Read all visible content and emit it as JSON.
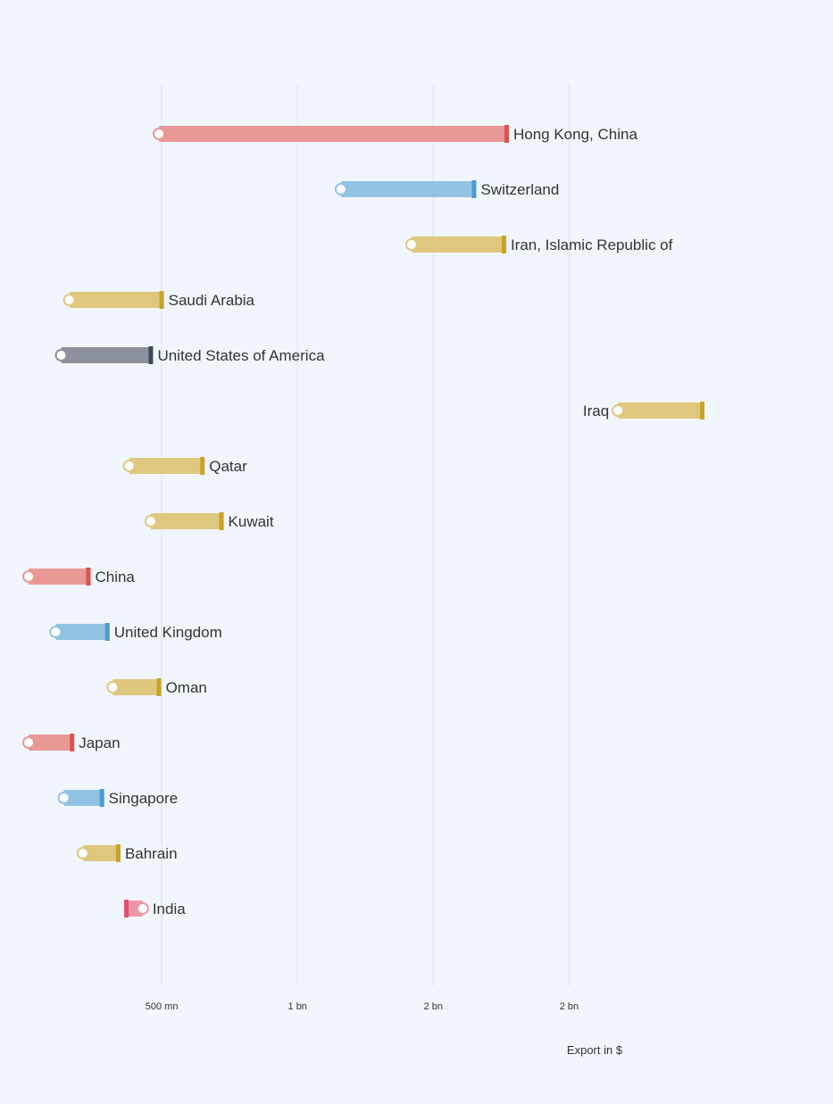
{
  "chart_data": {
    "type": "dumbbell",
    "title": "",
    "xlabel": "Export in $",
    "ylabel": "",
    "x_ticks": [
      {
        "label": "500 mn",
        "value": 500000000
      },
      {
        "label": "1 bn",
        "value": 1000000000
      },
      {
        "label": "2 bn",
        "value": 1500000000
      },
      {
        "label": "2 bn",
        "value": 2000000000
      }
    ],
    "xlim": [
      0,
      2600000000
    ],
    "grid": true,
    "legend": "none",
    "series_colors": {
      "asia_east": "#d9534f",
      "europe": "#4a9bd0",
      "middle_east": "#c9a227",
      "americas": "#3e4a5c",
      "south_asia": "#e0506e"
    },
    "rows": [
      {
        "country": "Hong Kong, China",
        "start": 490000000,
        "end": 1770000000,
        "color_key": "asia_east"
      },
      {
        "country": "Switzerland",
        "start": 1160000000,
        "end": 1650000000,
        "color_key": "europe"
      },
      {
        "country": "Iran, Islamic Republic of",
        "start": 1420000000,
        "end": 1760000000,
        "color_key": "middle_east"
      },
      {
        "country": "Saudi Arabia",
        "start": 160000000,
        "end": 500000000,
        "color_key": "middle_east"
      },
      {
        "country": "United States of America",
        "start": 130000000,
        "end": 460000000,
        "color_key": "americas"
      },
      {
        "country": "Iraq",
        "start": 2180000000,
        "end": 2490000000,
        "color_key": "middle_east"
      },
      {
        "country": "Qatar",
        "start": 380000000,
        "end": 650000000,
        "color_key": "middle_east"
      },
      {
        "country": "Kuwait",
        "start": 460000000,
        "end": 720000000,
        "color_key": "middle_east"
      },
      {
        "country": "China",
        "start": 10000000,
        "end": 230000000,
        "color_key": "asia_east"
      },
      {
        "country": "United Kingdom",
        "start": 110000000,
        "end": 300000000,
        "color_key": "europe"
      },
      {
        "country": "Oman",
        "start": 320000000,
        "end": 490000000,
        "color_key": "middle_east"
      },
      {
        "country": "Japan",
        "start": 10000000,
        "end": 170000000,
        "color_key": "asia_east"
      },
      {
        "country": "Singapore",
        "start": 140000000,
        "end": 280000000,
        "color_key": "europe"
      },
      {
        "country": "Bahrain",
        "start": 210000000,
        "end": 340000000,
        "color_key": "middle_east"
      },
      {
        "country": "India",
        "start": 430000000,
        "end": 370000000,
        "color_key": "south_asia"
      }
    ]
  }
}
